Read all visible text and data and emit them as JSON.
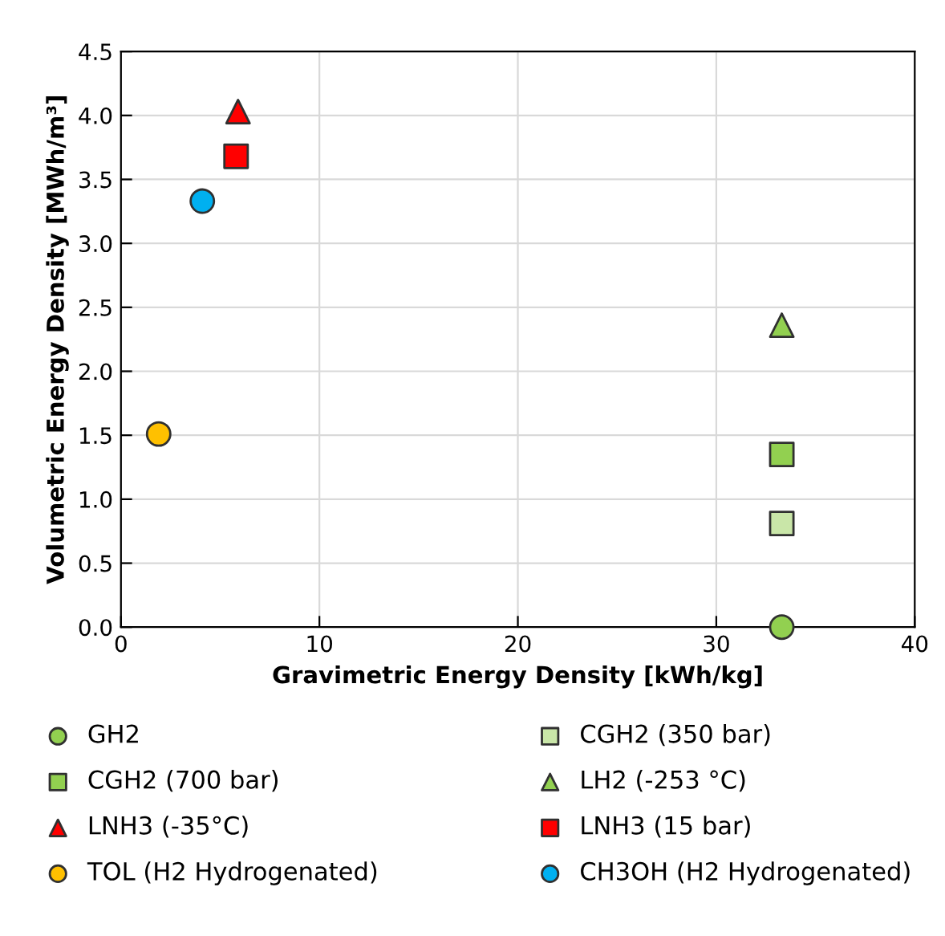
{
  "chart_data": {
    "type": "scatter",
    "xlabel": "Gravimetric Energy Density [kWh/kg]",
    "ylabel": "Volumetric Energy Density [MWh/m³]",
    "xlim": [
      0,
      40
    ],
    "xticks": [
      0,
      10,
      20,
      30,
      40
    ],
    "ylim": [
      0,
      4.5
    ],
    "yticks": [
      {
        "value": 0,
        "label": "0.0"
      },
      {
        "value": 0.5,
        "label": "0.5"
      },
      {
        "value": 1,
        "label": "1.0"
      },
      {
        "value": 1.5,
        "label": "1.5"
      },
      {
        "value": 2,
        "label": "2.0"
      },
      {
        "value": 2.5,
        "label": "2.5"
      },
      {
        "value": 3,
        "label": "3.0"
      },
      {
        "value": 3.5,
        "label": "3.5"
      },
      {
        "value": 4,
        "label": "4.0"
      },
      {
        "value": 4.5,
        "label": "4.5"
      }
    ],
    "grid": true,
    "legend": "bottom",
    "series": [
      {
        "name": "GH2",
        "color": "#92d050",
        "marker": "circle",
        "x": [
          33.3
        ],
        "values": [
          0
        ]
      },
      {
        "name": "CGH2 (350 bar)",
        "color": "#c9e6a8",
        "marker": "square",
        "x": [
          33.3
        ],
        "values": [
          0.81
        ]
      },
      {
        "name": "CGH2 (700 bar)",
        "color": "#92d050",
        "marker": "square",
        "x": [
          33.3
        ],
        "values": [
          1.35
        ]
      },
      {
        "name": "LH2 (-253 °C)",
        "color": "#92d050",
        "marker": "triangle",
        "x": [
          33.3
        ],
        "values": [
          2.36
        ]
      },
      {
        "name": "LNH3 (-35°C)",
        "color": "#ff0000",
        "marker": "triangle",
        "x": [
          5.9
        ],
        "values": [
          4.03
        ]
      },
      {
        "name": "LNH3 (15 bar)",
        "color": "#ff0000",
        "marker": "square",
        "x": [
          5.8
        ],
        "values": [
          3.68
        ]
      },
      {
        "name": "TOL (H2 Hydrogenated)",
        "color": "#ffc000",
        "marker": "circle",
        "x": [
          1.9
        ],
        "values": [
          1.51
        ]
      },
      {
        "name": "CH3OH (H2 Hydrogenated)",
        "color": "#00b0f0",
        "marker": "circle",
        "x": [
          4.1
        ],
        "values": [
          3.33
        ]
      }
    ]
  }
}
